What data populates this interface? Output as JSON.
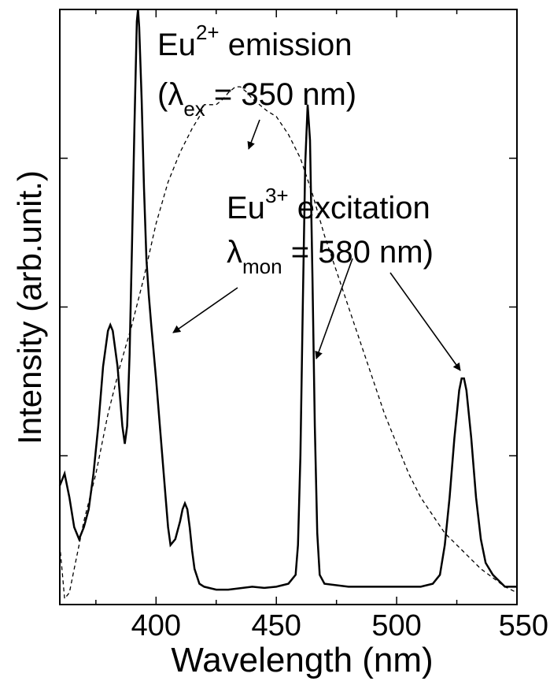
{
  "chart_data": {
    "type": "line",
    "xlabel": "Wavelength (nm)",
    "ylabel": "Intensity (arb.unit.)",
    "xlim": [
      360,
      550
    ],
    "ylim": [
      0,
      1.0
    ],
    "x_ticks": [
      "400",
      "450",
      "500",
      "550"
    ],
    "y_ticks": [
      0.25,
      0.5,
      0.75
    ],
    "y_tick_labels": false,
    "grid": false,
    "legend": "none",
    "series": [
      {
        "line_style": "solid",
        "color": "#000000",
        "points": [
          [
            360,
            0.2
          ],
          [
            362,
            0.22
          ],
          [
            364,
            0.18
          ],
          [
            366,
            0.13
          ],
          [
            368,
            0.11
          ],
          [
            370,
            0.13
          ],
          [
            372,
            0.16
          ],
          [
            374,
            0.22
          ],
          [
            376,
            0.3
          ],
          [
            378,
            0.4
          ],
          [
            380,
            0.46
          ],
          [
            381,
            0.47
          ],
          [
            382,
            0.46
          ],
          [
            384,
            0.4
          ],
          [
            386,
            0.3
          ],
          [
            387,
            0.27
          ],
          [
            388,
            0.3
          ],
          [
            389,
            0.42
          ],
          [
            390,
            0.6
          ],
          [
            391,
            0.8
          ],
          [
            392,
            0.98
          ],
          [
            392.5,
            1.0
          ],
          [
            393,
            0.97
          ],
          [
            394,
            0.85
          ],
          [
            395,
            0.7
          ],
          [
            396,
            0.58
          ],
          [
            397,
            0.52
          ],
          [
            398,
            0.47
          ],
          [
            400,
            0.38
          ],
          [
            402,
            0.28
          ],
          [
            404,
            0.18
          ],
          [
            405,
            0.13
          ],
          [
            406,
            0.1
          ],
          [
            408,
            0.11
          ],
          [
            410,
            0.14
          ],
          [
            411,
            0.16
          ],
          [
            412,
            0.17
          ],
          [
            413,
            0.16
          ],
          [
            414,
            0.13
          ],
          [
            415,
            0.09
          ],
          [
            416,
            0.06
          ],
          [
            418,
            0.035
          ],
          [
            420,
            0.03
          ],
          [
            425,
            0.025
          ],
          [
            430,
            0.025
          ],
          [
            440,
            0.03
          ],
          [
            445,
            0.028
          ],
          [
            450,
            0.03
          ],
          [
            455,
            0.035
          ],
          [
            458,
            0.05
          ],
          [
            459,
            0.1
          ],
          [
            460,
            0.25
          ],
          [
            461,
            0.5
          ],
          [
            462,
            0.74
          ],
          [
            463,
            0.84
          ],
          [
            464,
            0.78
          ],
          [
            465,
            0.55
          ],
          [
            466,
            0.3
          ],
          [
            467,
            0.12
          ],
          [
            468,
            0.05
          ],
          [
            470,
            0.035
          ],
          [
            480,
            0.03
          ],
          [
            485,
            0.03
          ],
          [
            490,
            0.03
          ],
          [
            500,
            0.03
          ],
          [
            510,
            0.03
          ],
          [
            515,
            0.035
          ],
          [
            518,
            0.05
          ],
          [
            520,
            0.1
          ],
          [
            522,
            0.18
          ],
          [
            524,
            0.28
          ],
          [
            526,
            0.36
          ],
          [
            527,
            0.38
          ],
          [
            528,
            0.38
          ],
          [
            529,
            0.36
          ],
          [
            531,
            0.28
          ],
          [
            533,
            0.18
          ],
          [
            535,
            0.11
          ],
          [
            537,
            0.07
          ],
          [
            540,
            0.05
          ],
          [
            545,
            0.03
          ],
          [
            550,
            0.03
          ]
        ]
      },
      {
        "line_style": "dashed",
        "color": "#000000",
        "points": [
          [
            360,
            0.1
          ],
          [
            362,
            0.01
          ],
          [
            364,
            0.02
          ],
          [
            366,
            0.06
          ],
          [
            368,
            0.1
          ],
          [
            370,
            0.14
          ],
          [
            375,
            0.22
          ],
          [
            380,
            0.32
          ],
          [
            385,
            0.4
          ],
          [
            390,
            0.47
          ],
          [
            395,
            0.55
          ],
          [
            400,
            0.64
          ],
          [
            405,
            0.71
          ],
          [
            410,
            0.76
          ],
          [
            415,
            0.8
          ],
          [
            418,
            0.82
          ],
          [
            420,
            0.84
          ],
          [
            422,
            0.84
          ],
          [
            425,
            0.84
          ],
          [
            428,
            0.85
          ],
          [
            430,
            0.86
          ],
          [
            433,
            0.87
          ],
          [
            435,
            0.87
          ],
          [
            438,
            0.86
          ],
          [
            440,
            0.85
          ],
          [
            443,
            0.84
          ],
          [
            446,
            0.83
          ],
          [
            450,
            0.82
          ],
          [
            455,
            0.79
          ],
          [
            460,
            0.75
          ],
          [
            465,
            0.69
          ],
          [
            470,
            0.62
          ],
          [
            475,
            0.56
          ],
          [
            480,
            0.5
          ],
          [
            485,
            0.44
          ],
          [
            490,
            0.38
          ],
          [
            495,
            0.32
          ],
          [
            500,
            0.27
          ],
          [
            505,
            0.22
          ],
          [
            510,
            0.18
          ],
          [
            515,
            0.15
          ],
          [
            520,
            0.12
          ],
          [
            525,
            0.1
          ],
          [
            530,
            0.08
          ],
          [
            535,
            0.06
          ],
          [
            540,
            0.045
          ],
          [
            545,
            0.03
          ],
          [
            550,
            0.02
          ]
        ]
      }
    ],
    "annotations": [
      {
        "base": "Eu",
        "sup": "2+",
        "rest": " emission"
      },
      {
        "open": "(",
        "greek": "λ",
        "sub": "ex",
        "rest": " = 350 nm)"
      },
      {
        "base": "Eu",
        "sup": "3+",
        "rest": " excitation"
      },
      {
        "greek": "λ",
        "sub": "mon",
        "rest": " = 580 nm)"
      }
    ]
  }
}
